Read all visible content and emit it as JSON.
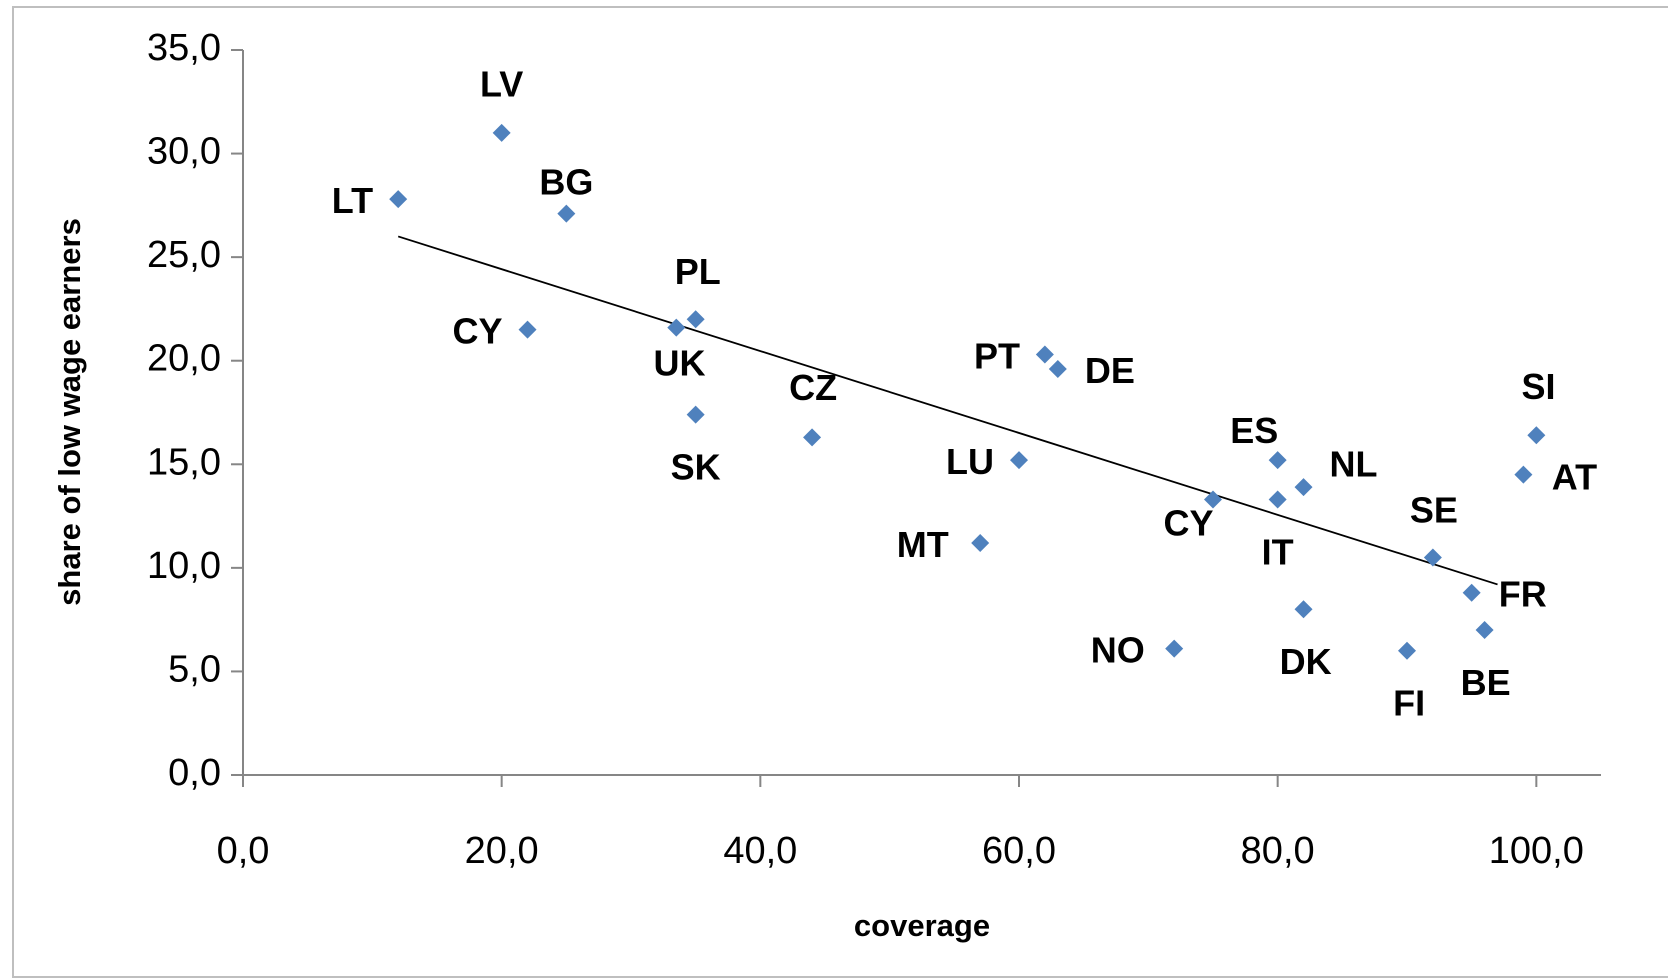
{
  "chart_data": {
    "type": "scatter",
    "x_label": "coverage",
    "y_label": "share of low wage earners",
    "color": "#4f81bd",
    "xlim": [
      0,
      105
    ],
    "ylim": [
      0,
      35
    ],
    "xticks": [
      {
        "value": 0,
        "label": "0,0"
      },
      {
        "value": 20,
        "label": "20,0"
      },
      {
        "value": 40,
        "label": "40,0"
      },
      {
        "value": 60,
        "label": "60,0"
      },
      {
        "value": 80,
        "label": "80,0"
      },
      {
        "value": 100,
        "label": "100,0"
      }
    ],
    "yticks": [
      {
        "value": 0,
        "label": "0,0"
      },
      {
        "value": 5,
        "label": "5,0"
      },
      {
        "value": 10,
        "label": "10,0"
      },
      {
        "value": 15,
        "label": "15,0"
      },
      {
        "value": 20,
        "label": "20,0"
      },
      {
        "value": 25,
        "label": "25,0"
      },
      {
        "value": 30,
        "label": "30,0"
      },
      {
        "value": 35,
        "label": "35,0"
      }
    ],
    "labels": [
      "LT",
      "LV",
      "BG",
      "CY",
      "PL",
      "UK",
      "SK",
      "CZ",
      "PT",
      "DE",
      "LU",
      "MT",
      "CY",
      "ES",
      "IT",
      "NL",
      "DK",
      "NO",
      "FI",
      "SE",
      "FR",
      "BE",
      "SI",
      "AT"
    ],
    "x": [
      12,
      20,
      25,
      22,
      35,
      33.5,
      35,
      44,
      62,
      63,
      60,
      57,
      75,
      80,
      80,
      82,
      82,
      72,
      90,
      92,
      95,
      96,
      100,
      99
    ],
    "values": [
      27.8,
      31.0,
      27.1,
      21.5,
      22.0,
      21.6,
      17.4,
      16.3,
      20.3,
      19.6,
      15.2,
      11.2,
      13.3,
      15.2,
      13.3,
      13.9,
      8.0,
      6.1,
      6.0,
      10.5,
      8.8,
      7.0,
      16.4,
      14.5
    ],
    "trendline": {
      "x": [
        12,
        97
      ],
      "values": [
        26.0,
        9.2
      ],
      "color": "#000000"
    }
  }
}
